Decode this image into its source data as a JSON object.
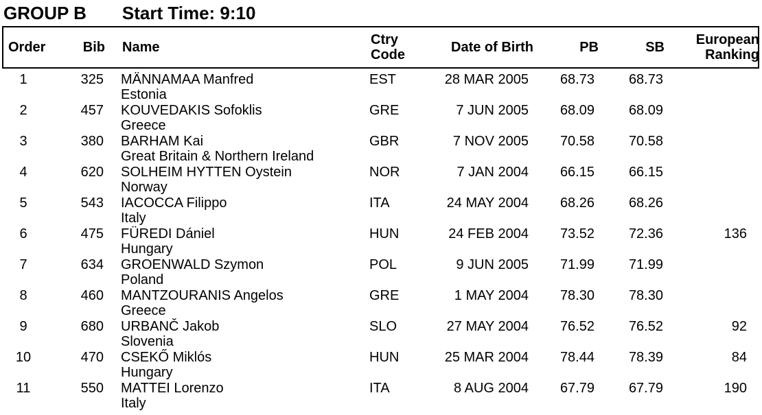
{
  "header": {
    "group_label": "GROUP B",
    "start_time_label": "Start Time: 9:10"
  },
  "table": {
    "headers": {
      "order": "Order",
      "bib": "Bib",
      "name": "Name",
      "ctry_line1": "Ctry",
      "ctry_line2": "Code",
      "dob": "Date of Birth",
      "pb": "PB",
      "sb": "SB",
      "rank_line1": "European",
      "rank_line2": "Ranking"
    },
    "rows": [
      {
        "order": "1",
        "bib": "325",
        "name": "MÄNNAMAA Manfred",
        "country": "Estonia",
        "ctry_code": "EST",
        "date_of_birth": "28 MAR 2005",
        "pb": "68.73",
        "sb": "68.73",
        "european_ranking": ""
      },
      {
        "order": "2",
        "bib": "457",
        "name": "KOUVEDAKIS Sofoklis",
        "country": "Greece",
        "ctry_code": "GRE",
        "date_of_birth": "7 JUN 2005",
        "pb": "68.09",
        "sb": "68.09",
        "european_ranking": ""
      },
      {
        "order": "3",
        "bib": "380",
        "name": "BARHAM Kai",
        "country": "Great Britain & Northern Ireland",
        "ctry_code": "GBR",
        "date_of_birth": "7 NOV 2005",
        "pb": "70.58",
        "sb": "70.58",
        "european_ranking": ""
      },
      {
        "order": "4",
        "bib": "620",
        "name": "SOLHEIM HYTTEN Oystein",
        "country": "Norway",
        "ctry_code": "NOR",
        "date_of_birth": "7 JAN 2004",
        "pb": "66.15",
        "sb": "66.15",
        "european_ranking": ""
      },
      {
        "order": "5",
        "bib": "543",
        "name": "IACOCCA Filippo",
        "country": "Italy",
        "ctry_code": "ITA",
        "date_of_birth": "24 MAY 2004",
        "pb": "68.26",
        "sb": "68.26",
        "european_ranking": ""
      },
      {
        "order": "6",
        "bib": "475",
        "name": "FÜREDI Dániel",
        "country": "Hungary",
        "ctry_code": "HUN",
        "date_of_birth": "24 FEB 2004",
        "pb": "73.52",
        "sb": "72.36",
        "european_ranking": "136"
      },
      {
        "order": "7",
        "bib": "634",
        "name": "GROENWALD Szymon",
        "country": "Poland",
        "ctry_code": "POL",
        "date_of_birth": "9 JUN 2005",
        "pb": "71.99",
        "sb": "71.99",
        "european_ranking": ""
      },
      {
        "order": "8",
        "bib": "460",
        "name": "MANTZOURANIS Angelos",
        "country": "Greece",
        "ctry_code": "GRE",
        "date_of_birth": "1 MAY 2004",
        "pb": "78.30",
        "sb": "78.30",
        "european_ranking": ""
      },
      {
        "order": "9",
        "bib": "680",
        "name": "URBANČ Jakob",
        "country": "Slovenia",
        "ctry_code": "SLO",
        "date_of_birth": "27 MAY 2004",
        "pb": "76.52",
        "sb": "76.52",
        "european_ranking": "92"
      },
      {
        "order": "10",
        "bib": "470",
        "name": "CSEKŐ Miklós",
        "country": "Hungary",
        "ctry_code": "HUN",
        "date_of_birth": "25 MAR 2004",
        "pb": "78.44",
        "sb": "78.39",
        "european_ranking": "84"
      },
      {
        "order": "11",
        "bib": "550",
        "name": "MATTEI Lorenzo",
        "country": "Italy",
        "ctry_code": "ITA",
        "date_of_birth": "8 AUG 2004",
        "pb": "67.79",
        "sb": "67.79",
        "european_ranking": "190"
      }
    ]
  },
  "colors": {
    "text": "#000000",
    "background": "#ffffff",
    "border": "#000000"
  }
}
